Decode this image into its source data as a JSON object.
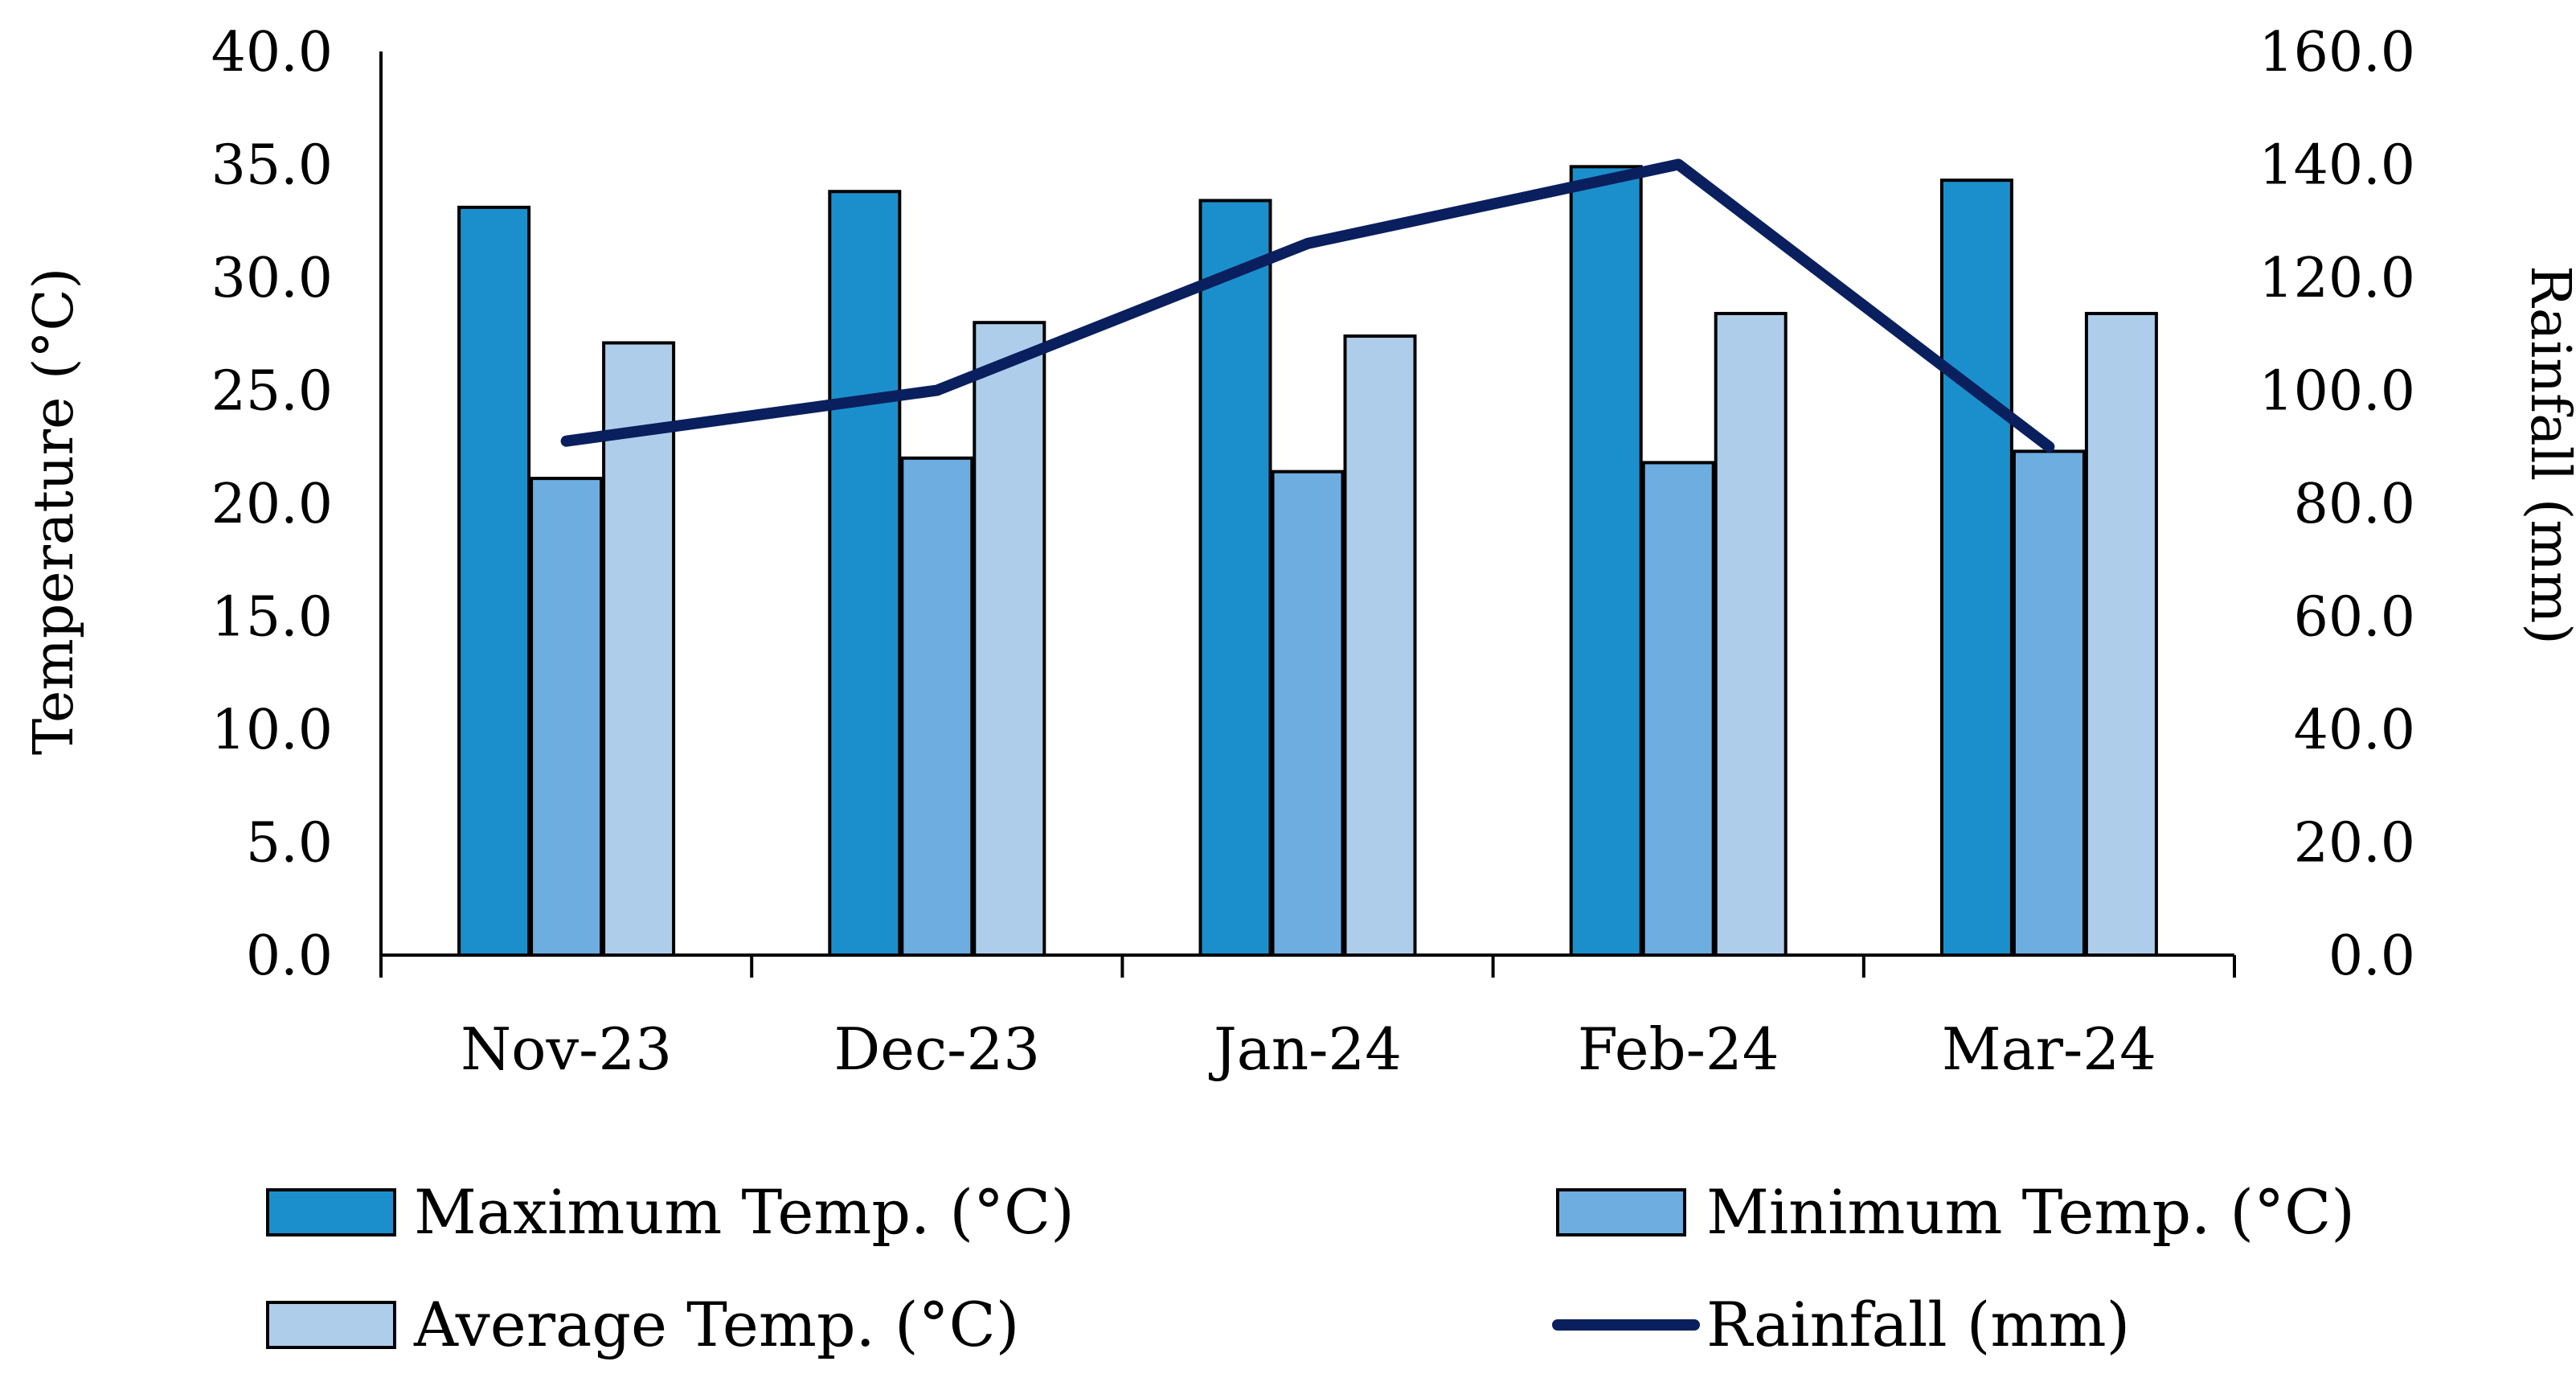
{
  "chart_data": {
    "type": "bar",
    "categories": [
      "Nov-23",
      "Dec-23",
      "Jan-24",
      "Feb-24",
      "Mar-24"
    ],
    "series": [
      {
        "name": "Maximum Temp. (°C)",
        "kind": "bar",
        "axis": "left",
        "color": "#1B8FCB",
        "values": [
          33.1,
          33.8,
          33.4,
          34.9,
          34.3
        ]
      },
      {
        "name": "Minimum Temp. (°C)",
        "kind": "bar",
        "axis": "left",
        "color": "#6EADE0",
        "values": [
          21.1,
          22.0,
          21.4,
          21.8,
          22.3
        ]
      },
      {
        "name": "Average Temp. (°C)",
        "kind": "bar",
        "axis": "left",
        "color": "#AECDEB",
        "values": [
          27.1,
          28.0,
          27.4,
          28.4,
          28.4
        ]
      },
      {
        "name": "Rainfall (mm)",
        "kind": "line",
        "axis": "right",
        "color": "#0A1F5E",
        "values": [
          91,
          100,
          126,
          140,
          90
        ]
      }
    ],
    "ylabel": "Temperature (°C)",
    "y2label": "Rainfall (mm)",
    "ylim": [
      0,
      40
    ],
    "y2lim": [
      0,
      160
    ],
    "yticks": [
      "0.0",
      "5.0",
      "10.0",
      "15.0",
      "20.0",
      "25.0",
      "30.0",
      "35.0",
      "40.0"
    ],
    "y2ticks": [
      "0.0",
      "20.0",
      "40.0",
      "60.0",
      "80.0",
      "100.0",
      "120.0",
      "140.0",
      "160.0"
    ],
    "legend": {
      "placement": "bottom",
      "items": [
        "Maximum Temp. (°C)",
        "Minimum Temp. (°C)",
        "Average Temp. (°C)",
        "Rainfall (mm)"
      ]
    },
    "grid": false
  }
}
